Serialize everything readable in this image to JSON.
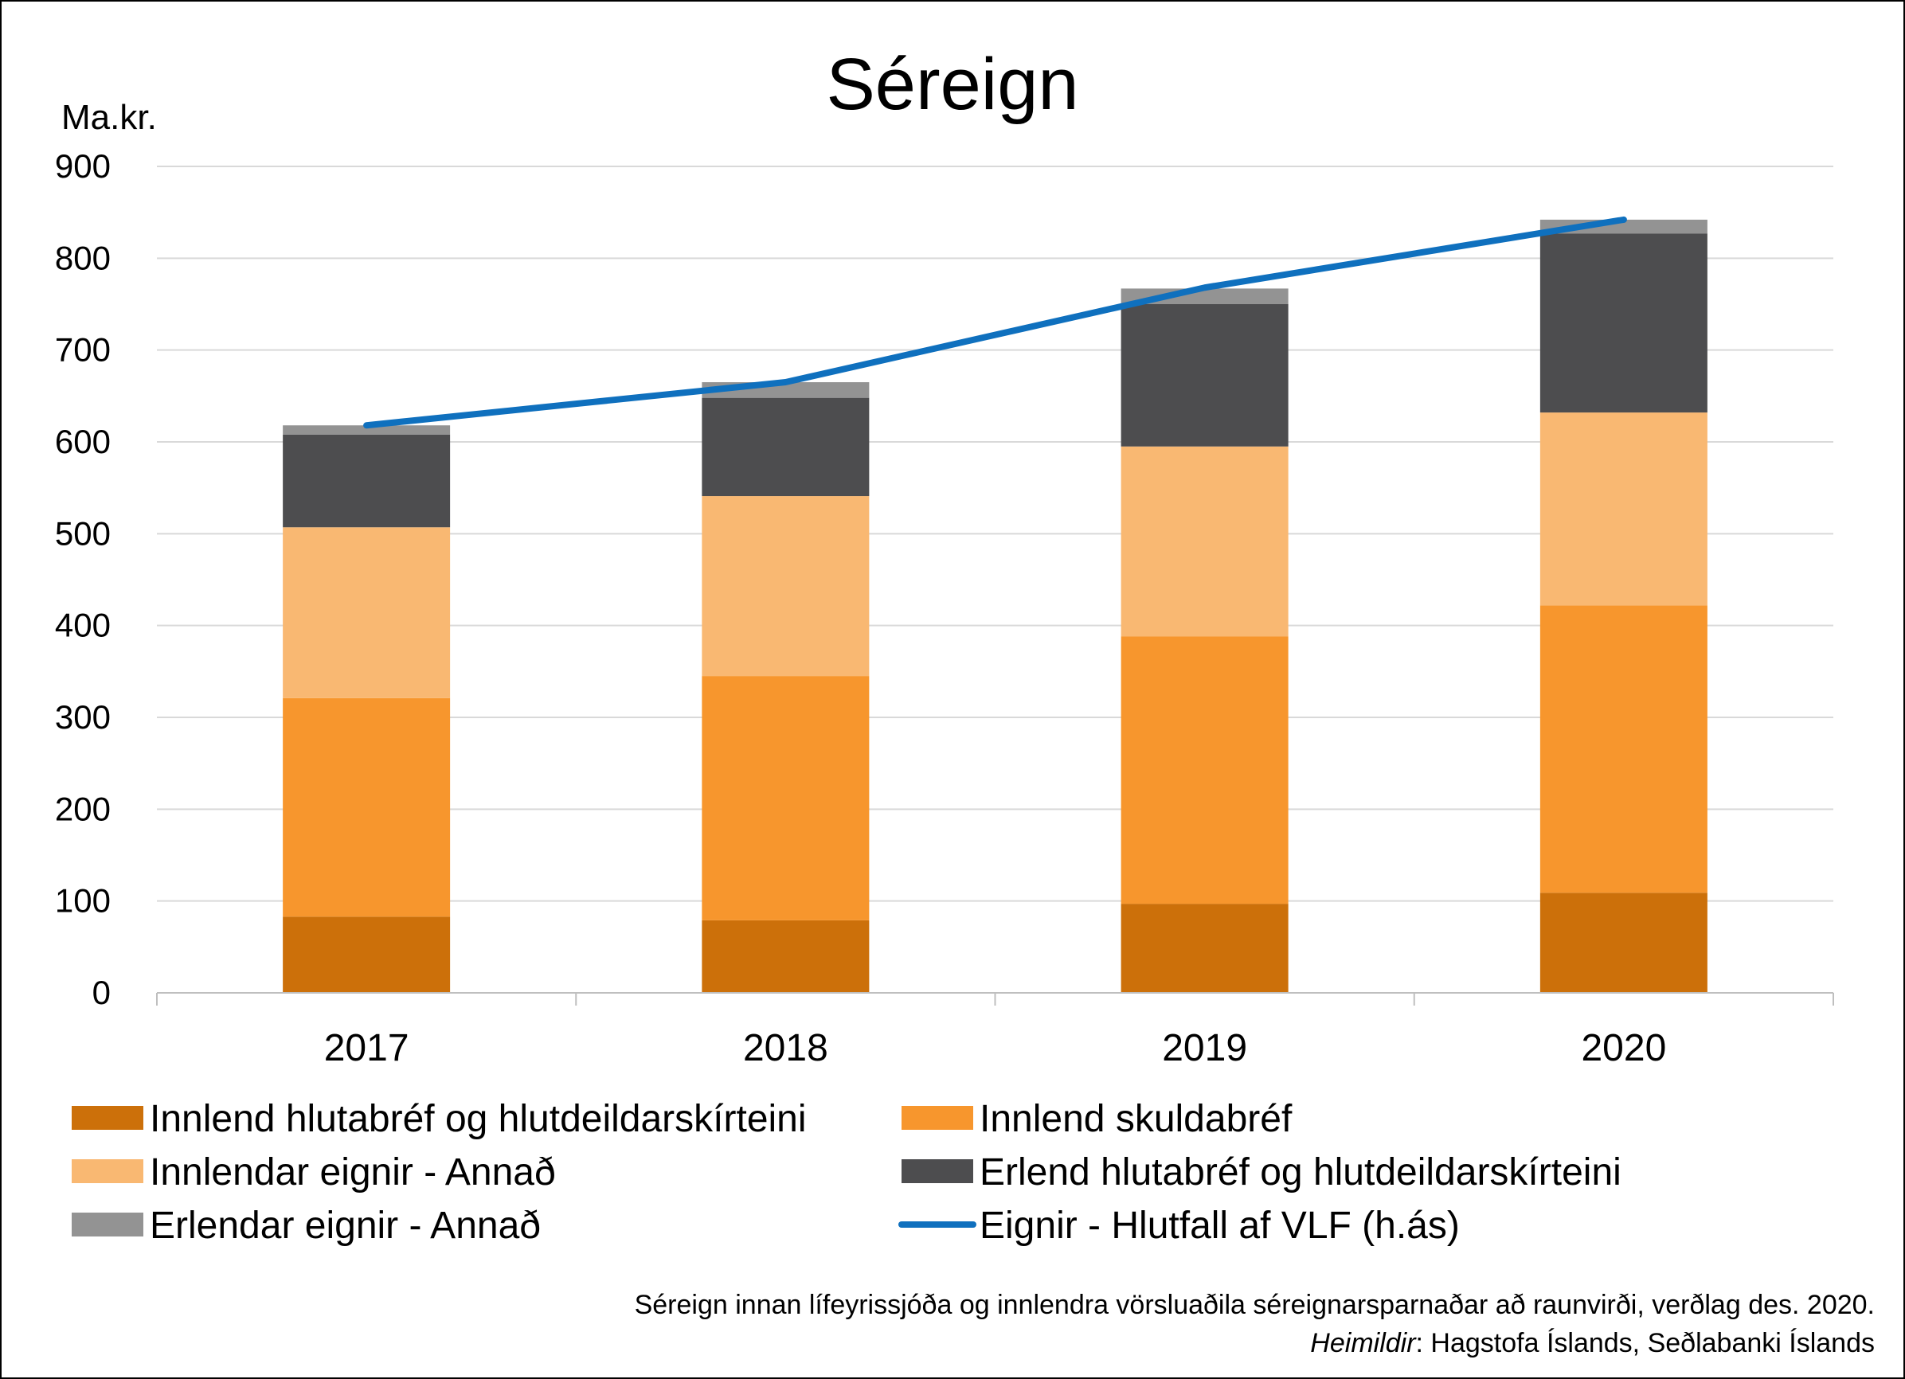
{
  "chart_data": {
    "type": "bar",
    "stacked": true,
    "title": "Séreign",
    "ylabel": "Ma.kr.",
    "ylim": [
      0,
      900
    ],
    "yticks": [
      0,
      100,
      200,
      300,
      400,
      500,
      600,
      700,
      800,
      900
    ],
    "grid": true,
    "legend_position": "bottom",
    "categories": [
      "2017",
      "2018",
      "2019",
      "2020"
    ],
    "series": [
      {
        "name": "Innlend hlutabréf og hlutdeildarskírteini",
        "color": "#CC700A",
        "values": [
          83,
          79,
          97,
          109
        ]
      },
      {
        "name": "Innlend skuldabréf",
        "color": "#F7962D",
        "values": [
          238,
          266,
          291,
          313
        ]
      },
      {
        "name": "Innlendar eignir - Annað",
        "color": "#F9B872",
        "values": [
          186,
          196,
          207,
          210
        ]
      },
      {
        "name": "Erlend hlutabréf og hlutdeildarskírteini",
        "color": "#4D4D4F",
        "values": [
          101,
          107,
          155,
          195
        ]
      },
      {
        "name": "Erlendar eignir - Annað",
        "color": "#939393",
        "values": [
          10,
          17,
          17,
          15
        ]
      }
    ],
    "line_series": {
      "name": "Eignir - Hlutfall af VLF (h.ás)",
      "color": "#0F70BE",
      "values": [
        618,
        665,
        768,
        842
      ]
    }
  },
  "footnote": {
    "line1": "Séreign innan lífeyrissjóða og innlendra vörsluaðila séreignarsparnaðar að raunvirði, verðlag des.  2020.",
    "source_label": "Heimildir",
    "source_text": ": Hagstofa Íslands, Seðlabanki Íslands"
  }
}
